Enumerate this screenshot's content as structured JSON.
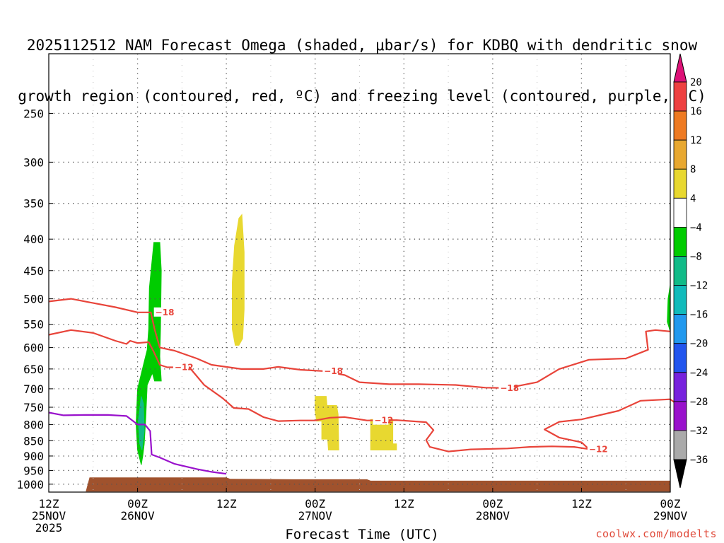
{
  "chart_data": {
    "type": "heatmap",
    "title_lines": [
      "2025112512 NAM Forecast Omega (shaded, μbar/s) for KDBQ with dendritic snow",
      "growth region (contoured, red, ºC) and freezing level (contoured, purple, ºC)"
    ],
    "xlabel": "Forecast Time (UTC)",
    "credit": "coolwx.com/modelts",
    "x_ticks": [
      {
        "hour": 0,
        "lines": [
          "12Z",
          "25NOV",
          "2025"
        ]
      },
      {
        "hour": 12,
        "lines": [
          "00Z",
          "26NOV"
        ]
      },
      {
        "hour": 24,
        "lines": [
          "12Z"
        ]
      },
      {
        "hour": 36,
        "lines": [
          "00Z",
          "27NOV"
        ]
      },
      {
        "hour": 48,
        "lines": [
          "12Z"
        ]
      },
      {
        "hour": 60,
        "lines": [
          "00Z",
          "28NOV"
        ]
      },
      {
        "hour": 72,
        "lines": [
          "12Z"
        ]
      },
      {
        "hour": 84,
        "lines": [
          "00Z",
          "29NOV"
        ]
      }
    ],
    "x_range_hours": [
      0,
      84
    ],
    "y_axis": {
      "quantity": "pressure (hPa)",
      "scale": "log",
      "range": [
        1030,
        200
      ],
      "ticks": [
        250,
        300,
        350,
        400,
        450,
        500,
        550,
        600,
        650,
        700,
        750,
        800,
        850,
        900,
        950,
        1000
      ]
    },
    "grid": true,
    "colorbar": {
      "labels": [
        "20",
        "16",
        "12",
        "8",
        "4",
        "−4",
        "−8",
        "−12",
        "−16",
        "−20",
        "−24",
        "−28",
        "−32",
        "−36"
      ],
      "colors": [
        "#ee4040",
        "#ee7a22",
        "#e8a830",
        "#e8d830",
        "#ffffff",
        "#00cc00",
        "#11bb88",
        "#11bbbb",
        "#2299ee",
        "#2255ee",
        "#7722dd",
        "#9911cc",
        "#aaaaaa"
      ],
      "top_arrow_color": "#dd1177",
      "bottom_arrow_color": "#000000"
    },
    "shaded_regions": [
      {
        "name": "green-main",
        "color": "#00cc00",
        "points": [
          [
            12.5,
            930
          ],
          [
            12.0,
            880
          ],
          [
            11.8,
            800
          ],
          [
            12.0,
            700
          ],
          [
            12.8,
            640
          ],
          [
            13.3,
            605
          ],
          [
            13.5,
            560
          ],
          [
            13.6,
            480
          ],
          [
            14.2,
            405
          ],
          [
            15.0,
            405
          ],
          [
            15.2,
            450
          ],
          [
            15.1,
            560
          ],
          [
            15.0,
            620
          ],
          [
            15.2,
            680
          ],
          [
            14.3,
            680
          ],
          [
            14.0,
            660
          ],
          [
            13.3,
            690
          ],
          [
            13.1,
            780
          ],
          [
            12.9,
            860
          ],
          [
            12.7,
            900
          ]
        ]
      },
      {
        "name": "teal-core",
        "color": "#11bb88",
        "points": [
          [
            12.3,
            860
          ],
          [
            12.1,
            790
          ],
          [
            12.5,
            720
          ],
          [
            12.8,
            740
          ],
          [
            12.9,
            820
          ],
          [
            12.6,
            880
          ]
        ]
      },
      {
        "name": "yellow-upper",
        "color": "#e8d830",
        "points": [
          [
            25.2,
            595
          ],
          [
            24.8,
            560
          ],
          [
            24.8,
            470
          ],
          [
            25.1,
            410
          ],
          [
            25.7,
            370
          ],
          [
            26.1,
            365
          ],
          [
            26.4,
            420
          ],
          [
            26.4,
            520
          ],
          [
            26.2,
            580
          ],
          [
            25.7,
            595
          ]
        ]
      },
      {
        "name": "yellow-lower-a",
        "color": "#e8d830",
        "points": [
          [
            36.0,
            720
          ],
          [
            37.5,
            720
          ],
          [
            37.6,
            745
          ],
          [
            38.9,
            745
          ],
          [
            39.1,
            770
          ],
          [
            39.2,
            880
          ],
          [
            37.8,
            880
          ],
          [
            37.7,
            845
          ],
          [
            36.9,
            845
          ],
          [
            36.9,
            790
          ],
          [
            36.2,
            790
          ],
          [
            36.0,
            760
          ]
        ]
      },
      {
        "name": "yellow-lower-b",
        "color": "#e8d830",
        "points": [
          [
            43.5,
            785
          ],
          [
            46.5,
            785
          ],
          [
            46.5,
            860
          ],
          [
            47.0,
            860
          ],
          [
            47.0,
            880
          ],
          [
            43.5,
            880
          ]
        ]
      },
      {
        "name": "green-right",
        "color": "#00cc00",
        "points": [
          [
            84.0,
            475
          ],
          [
            83.7,
            500
          ],
          [
            83.6,
            545
          ],
          [
            84.0,
            565
          ]
        ]
      }
    ],
    "contours": [
      {
        "name": "dgz-18",
        "color": "#e8443a",
        "label": "−18",
        "label_points": [
          [
            14.4,
            526
          ],
          [
            37.2,
            655
          ],
          [
            61.0,
            698
          ]
        ],
        "points": [
          [
            0,
            505
          ],
          [
            3,
            500
          ],
          [
            6,
            508
          ],
          [
            9,
            516
          ],
          [
            12,
            526
          ],
          [
            13.8,
            526
          ],
          [
            14.3,
            560
          ],
          [
            15.0,
            600
          ],
          [
            17,
            607
          ],
          [
            20,
            625
          ],
          [
            22,
            640
          ],
          [
            26,
            650
          ],
          [
            29,
            650
          ],
          [
            31,
            645
          ],
          [
            34,
            652
          ],
          [
            37,
            655
          ],
          [
            40,
            665
          ],
          [
            42,
            683
          ],
          [
            46,
            688
          ],
          [
            50,
            688
          ],
          [
            55,
            690
          ],
          [
            59,
            697
          ],
          [
            62,
            698
          ],
          [
            66,
            683
          ],
          [
            69,
            650
          ],
          [
            73,
            628
          ],
          [
            78,
            625
          ],
          [
            81,
            605
          ],
          [
            80.7,
            565
          ],
          [
            82,
            562
          ],
          [
            84,
            565
          ]
        ]
      },
      {
        "name": "dgz-12",
        "color": "#e8443a",
        "label": "−12",
        "label_points": [
          [
            17.0,
            646
          ],
          [
            44.0,
            788
          ],
          [
            73.0,
            878
          ]
        ],
        "points": [
          [
            0,
            572
          ],
          [
            3,
            562
          ],
          [
            6,
            568
          ],
          [
            9,
            585
          ],
          [
            10.5,
            592
          ],
          [
            11,
            585
          ],
          [
            12,
            590
          ],
          [
            13.5,
            588
          ],
          [
            14.2,
            610
          ],
          [
            15.0,
            640
          ],
          [
            16.0,
            646
          ],
          [
            19,
            646
          ],
          [
            21,
            690
          ],
          [
            23.5,
            725
          ],
          [
            25,
            752
          ],
          [
            27,
            755
          ],
          [
            29,
            778
          ],
          [
            31,
            790
          ],
          [
            34,
            788
          ],
          [
            36,
            788
          ],
          [
            38,
            780
          ],
          [
            40,
            778
          ],
          [
            43,
            788
          ],
          [
            47,
            787
          ],
          [
            51,
            793
          ],
          [
            52,
            817
          ],
          [
            51,
            848
          ],
          [
            51.5,
            870
          ],
          [
            54,
            885
          ],
          [
            57,
            878
          ],
          [
            62,
            875
          ],
          [
            65,
            870
          ],
          [
            68,
            868
          ],
          [
            71,
            870
          ],
          [
            73,
            877
          ],
          [
            72,
            855
          ],
          [
            69,
            840
          ],
          [
            67,
            815
          ],
          [
            69,
            792
          ],
          [
            72,
            785
          ],
          [
            77,
            760
          ],
          [
            80,
            732
          ],
          [
            84,
            728
          ],
          [
            84.8,
            740
          ]
        ]
      },
      {
        "name": "freezing-level",
        "color": "#9911cc",
        "label": "",
        "label_points": [],
        "points": [
          [
            0,
            765
          ],
          [
            2,
            773
          ],
          [
            5,
            772
          ],
          [
            8,
            772
          ],
          [
            10.5,
            775
          ],
          [
            12.0,
            800
          ],
          [
            13.0,
            800
          ],
          [
            13.7,
            820
          ],
          [
            13.9,
            895
          ],
          [
            15,
            905
          ],
          [
            17,
            927
          ],
          [
            20,
            945
          ],
          [
            22,
            955
          ],
          [
            24,
            962
          ]
        ]
      }
    ],
    "terrain": {
      "color": "#a0522d",
      "points": [
        [
          0,
          1028
        ],
        [
          5,
          1028
        ],
        [
          5.5,
          975
        ],
        [
          24,
          975
        ],
        [
          24.5,
          980
        ],
        [
          33,
          982
        ],
        [
          43,
          982
        ],
        [
          43.5,
          987
        ],
        [
          84,
          987
        ],
        [
          84,
          1028
        ]
      ]
    }
  }
}
